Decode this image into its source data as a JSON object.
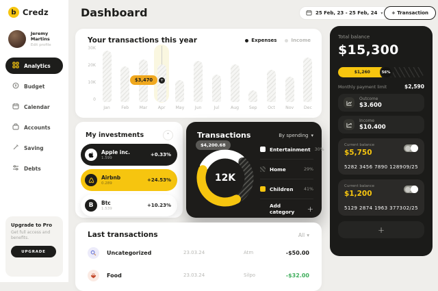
{
  "app": {
    "name": "Credz"
  },
  "colors": {
    "accent_yellow": "#F6C50F",
    "tooltip_amber": "#F0A81E",
    "dark": "#1D1C1A",
    "positive_green": "#3FAE5C"
  },
  "sidebar": {
    "profile": {
      "name": "Jeremy Martins",
      "edit_label": "Edit profile"
    },
    "items": [
      {
        "label": "Analytics",
        "icon": "grid-icon",
        "active": true
      },
      {
        "label": "Budget",
        "icon": "coin-icon",
        "active": false
      },
      {
        "label": "Calendar",
        "icon": "calendar-icon",
        "active": false
      },
      {
        "label": "Accounts",
        "icon": "wallet-icon",
        "active": false
      },
      {
        "label": "Saving",
        "icon": "pen-icon",
        "active": false
      },
      {
        "label": "Debts",
        "icon": "sliders-icon",
        "active": false
      }
    ],
    "upgrade": {
      "title": "Upgrade to Pro",
      "subtitle": "Get full access and benefits.",
      "button_label": "UPGRADE"
    }
  },
  "header": {
    "title": "Dashboard",
    "date_range": "25 Feb, 23 - 25 Feb, 24",
    "transaction_button": "+ Transaction"
  },
  "chart_data": [
    {
      "type": "bar",
      "title": "Your transactions this year",
      "categories": [
        "Jan",
        "Feb",
        "Mar",
        "Apr",
        "May",
        "Jun",
        "Jul",
        "Aug",
        "Sep",
        "Oct",
        "Nov",
        "Dec"
      ],
      "values": [
        30000,
        21000,
        25000,
        22000,
        13000,
        24000,
        16000,
        22000,
        7000,
        19000,
        15000,
        26000
      ],
      "ylim": [
        0,
        30000
      ],
      "yticks": [
        "0",
        "10K",
        "20K",
        "30K"
      ],
      "legend": [
        "Expenses",
        "Income"
      ],
      "legend_position": "top-right",
      "grid": false,
      "highlight_category": "Apr",
      "tooltip": {
        "category": "Apr",
        "label": "$3,470",
        "value": 3470
      }
    },
    {
      "type": "pie",
      "title": "Transactions",
      "filter_label": "By spending",
      "labels": [
        "Entertainment",
        "Home",
        "Children"
      ],
      "values": [
        30,
        29,
        41
      ],
      "percent_labels": [
        "30%",
        "29%",
        "41%"
      ],
      "colors": [
        "#FFFFFF",
        "hatch",
        "#F6C50F"
      ],
      "center_label": "12K",
      "tooltip": "$4,200.68",
      "legend_position": "right",
      "add_category_label": "Add category"
    }
  ],
  "investments": {
    "title": "My investments",
    "items": [
      {
        "name": "Apple inc.",
        "amount": "1.599",
        "change": "+0.33%",
        "icon": "apple-icon"
      },
      {
        "name": "Airbnb",
        "amount": "0.289",
        "change": "+24.53%",
        "icon": "airbnb-icon"
      },
      {
        "name": "Btc",
        "amount": "1.539",
        "change": "+10.23%",
        "icon": "bitcoin-icon"
      }
    ]
  },
  "balance_panel": {
    "label": "Total balance",
    "amount": "$15,300",
    "progress": {
      "value_label": "$1,260",
      "percent": 56,
      "percent_label": "56%"
    },
    "limit_label": "Monthly payment limit",
    "limit_value": "$2,590",
    "stats": [
      {
        "label": "Outcome",
        "value": "$3.600",
        "icon": "trend-down-icon"
      },
      {
        "label": "Income",
        "value": "$10.400",
        "icon": "trend-up-icon"
      }
    ],
    "cards": [
      {
        "label": "Current balance",
        "amount": "$5,750",
        "number": "5282 3456 7890 1289",
        "expiry": "09/25"
      },
      {
        "label": "Current balance",
        "amount": "$1,200",
        "number": "5129 2874 1963 3773",
        "expiry": "02/25"
      }
    ],
    "add_card_label": "+"
  },
  "last_transactions": {
    "title": "Last transactions",
    "filter_label": "All",
    "rows": [
      {
        "category": "Uncategorized",
        "date": "23.03.24",
        "merchant": "Atm",
        "amount": "-$50.00",
        "positive": false,
        "icon": "magnifier-icon"
      },
      {
        "category": "Food",
        "date": "23.03.24",
        "merchant": "Silpo",
        "amount": "-$32.00",
        "positive": true,
        "icon": "food-bowl-icon"
      }
    ]
  }
}
